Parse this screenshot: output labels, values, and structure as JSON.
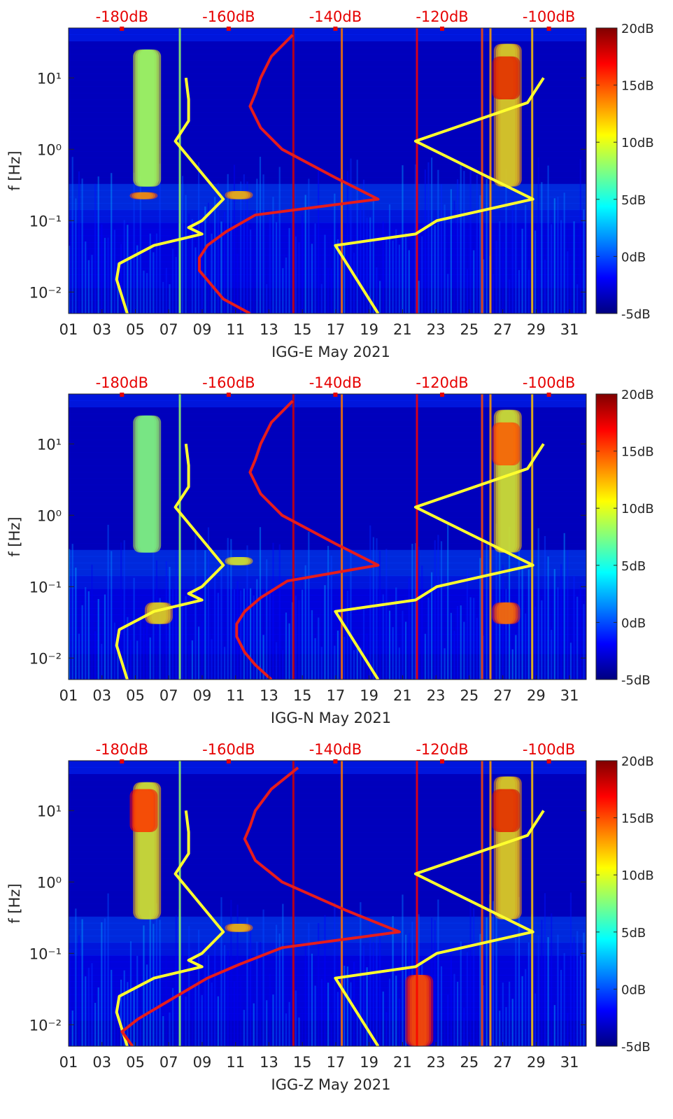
{
  "colors": {
    "background_low": "#00008c",
    "noise_line_yellow": "#ffff2e",
    "psd_line_red": "#e61c1c",
    "top_axis_text": "#e60000",
    "axis_text": "#262626"
  },
  "chart_data": [
    {
      "type": "heatmap",
      "title": "",
      "xlabel": "IGG-E May 2021",
      "ylabel": "f [Hz]",
      "x_range_days": [
        1,
        32
      ],
      "x_ticks": [
        1,
        3,
        5,
        7,
        9,
        11,
        13,
        15,
        17,
        19,
        21,
        23,
        25,
        27,
        29,
        31
      ],
      "x_tick_labels": [
        "01",
        "03",
        "05",
        "07",
        "09",
        "11",
        "13",
        "15",
        "17",
        "19",
        "21",
        "23",
        "25",
        "27",
        "29",
        "31"
      ],
      "y_scale": "log",
      "y_range_hz": [
        0.005,
        50
      ],
      "y_ticks": [
        0.01,
        0.1,
        1,
        10
      ],
      "y_tick_labels": [
        "10^-2",
        "10^-1",
        "10^0",
        "10^1"
      ],
      "top_axis_labels": [
        "-180dB",
        "-160dB",
        "-140dB",
        "-120dB",
        "-100dB"
      ],
      "top_axis_values_db": [
        -180,
        -160,
        -140,
        -120,
        -100
      ],
      "top_axis_range_db": [
        -190,
        -93
      ],
      "colorbar": {
        "range_db": [
          -5,
          20
        ],
        "ticks_db": [
          -5,
          0,
          5,
          10,
          15,
          20
        ],
        "tick_labels": [
          "-5dB",
          "0dB",
          "5dB",
          "10dB",
          "15dB",
          "20dB"
        ]
      },
      "events": [
        {
          "day": 5.7,
          "fmin": 0.3,
          "fmax": 25,
          "level": 10
        },
        {
          "day": 5.5,
          "fmin": 0.2,
          "fmax": 0.25,
          "level": 15
        },
        {
          "day": 11.2,
          "fmin": 0.2,
          "fmax": 0.26,
          "level": 14
        },
        {
          "day": 27.3,
          "fmin": 0.3,
          "fmax": 30,
          "level": 13
        },
        {
          "day": 27.2,
          "fmin": 5,
          "fmax": 20,
          "level": 18
        }
      ],
      "series": [
        {
          "name": "noise_model_low",
          "freq_hz": [
            0.005,
            0.015,
            0.025,
            0.045,
            0.065,
            0.08,
            0.1,
            0.2,
            1.3,
            2.5,
            5,
            10
          ],
          "db": [
            -179,
            -181,
            -180.5,
            -174,
            -165,
            -167.5,
            -165,
            -161,
            -170,
            -167.5,
            -167.5,
            -168
          ]
        },
        {
          "name": "noise_model_high",
          "freq_hz": [
            0.005,
            0.045,
            0.065,
            0.1,
            0.2,
            1.3,
            4.5,
            10
          ],
          "db": [
            -132,
            -140,
            -125,
            -121,
            -103,
            -125,
            -104,
            -101
          ]
        },
        {
          "name": "station_psd",
          "freq_hz": [
            0.005,
            0.008,
            0.012,
            0.02,
            0.03,
            0.045,
            0.07,
            0.12,
            0.2,
            0.4,
            1,
            2,
            4,
            6,
            10,
            20,
            40
          ],
          "db": [
            -156,
            -161,
            -163,
            -165.5,
            -165.5,
            -164,
            -160.5,
            -155,
            -132,
            -140,
            -150,
            -154,
            -156,
            -155,
            -154,
            -152,
            -148
          ]
        }
      ]
    },
    {
      "type": "heatmap",
      "title": "",
      "xlabel": "IGG-N May 2021",
      "ylabel": "f [Hz]",
      "x_range_days": [
        1,
        32
      ],
      "x_ticks": [
        1,
        3,
        5,
        7,
        9,
        11,
        13,
        15,
        17,
        19,
        21,
        23,
        25,
        27,
        29,
        31
      ],
      "x_tick_labels": [
        "01",
        "03",
        "05",
        "07",
        "09",
        "11",
        "13",
        "15",
        "17",
        "19",
        "21",
        "23",
        "25",
        "27",
        "29",
        "31"
      ],
      "y_scale": "log",
      "y_range_hz": [
        0.005,
        50
      ],
      "y_ticks": [
        0.01,
        0.1,
        1,
        10
      ],
      "y_tick_labels": [
        "10^-2",
        "10^-1",
        "10^0",
        "10^1"
      ],
      "top_axis_labels": [
        "-180dB",
        "-160dB",
        "-140dB",
        "-120dB",
        "-100dB"
      ],
      "top_axis_values_db": [
        -180,
        -160,
        -140,
        -120,
        -100
      ],
      "top_axis_range_db": [
        -190,
        -93
      ],
      "colorbar": {
        "range_db": [
          -5,
          20
        ],
        "ticks_db": [
          -5,
          0,
          5,
          10,
          15,
          20
        ],
        "tick_labels": [
          "-5dB",
          "0dB",
          "5dB",
          "10dB",
          "15dB",
          "20dB"
        ]
      },
      "events": [
        {
          "day": 6.4,
          "fmin": 0.03,
          "fmax": 0.06,
          "level": 13
        },
        {
          "day": 5.7,
          "fmin": 0.3,
          "fmax": 25,
          "level": 9
        },
        {
          "day": 11.2,
          "fmin": 0.2,
          "fmax": 0.26,
          "level": 12
        },
        {
          "day": 27.3,
          "fmin": 0.3,
          "fmax": 30,
          "level": 12
        },
        {
          "day": 27.2,
          "fmin": 0.03,
          "fmax": 0.06,
          "level": 16
        },
        {
          "day": 27.2,
          "fmin": 5,
          "fmax": 20,
          "level": 16
        }
      ],
      "series": [
        {
          "name": "noise_model_low",
          "freq_hz": [
            0.005,
            0.015,
            0.025,
            0.045,
            0.065,
            0.08,
            0.1,
            0.2,
            1.3,
            2.5,
            5,
            10
          ],
          "db": [
            -179,
            -181,
            -180.5,
            -174,
            -165,
            -167.5,
            -165,
            -161,
            -170,
            -167.5,
            -167.5,
            -168
          ]
        },
        {
          "name": "noise_model_high",
          "freq_hz": [
            0.005,
            0.045,
            0.065,
            0.1,
            0.2,
            1.3,
            4.5,
            10
          ],
          "db": [
            -132,
            -140,
            -125,
            -121,
            -103,
            -125,
            -104,
            -101
          ]
        },
        {
          "name": "station_psd",
          "freq_hz": [
            0.005,
            0.008,
            0.012,
            0.02,
            0.03,
            0.045,
            0.07,
            0.12,
            0.2,
            0.4,
            1,
            2,
            4,
            6,
            10,
            20,
            40
          ],
          "db": [
            -152,
            -155,
            -157,
            -158.5,
            -158.5,
            -157,
            -154,
            -149,
            -132,
            -140,
            -150,
            -154,
            -156,
            -155,
            -154,
            -152,
            -148
          ]
        }
      ]
    },
    {
      "type": "heatmap",
      "title": "",
      "xlabel": "IGG-Z May 2021",
      "ylabel": "f [Hz]",
      "x_range_days": [
        1,
        32
      ],
      "x_ticks": [
        1,
        3,
        5,
        7,
        9,
        11,
        13,
        15,
        17,
        19,
        21,
        23,
        25,
        27,
        29,
        31
      ],
      "x_tick_labels": [
        "01",
        "03",
        "05",
        "07",
        "09",
        "11",
        "13",
        "15",
        "17",
        "19",
        "21",
        "23",
        "25",
        "27",
        "29",
        "31"
      ],
      "y_scale": "log",
      "y_range_hz": [
        0.005,
        50
      ],
      "y_ticks": [
        0.01,
        0.1,
        1,
        10
      ],
      "y_tick_labels": [
        "10^-2",
        "10^-1",
        "10^0",
        "10^1"
      ],
      "top_axis_labels": [
        "-180dB",
        "-160dB",
        "-140dB",
        "-120dB",
        "-100dB"
      ],
      "top_axis_values_db": [
        -180,
        -160,
        -140,
        -120,
        -100
      ],
      "top_axis_range_db": [
        -190,
        -93
      ],
      "colorbar": {
        "range_db": [
          -5,
          20
        ],
        "ticks_db": [
          -5,
          0,
          5,
          10,
          15,
          20
        ],
        "tick_labels": [
          "-5dB",
          "0dB",
          "5dB",
          "10dB",
          "15dB",
          "20dB"
        ]
      },
      "events": [
        {
          "day": 5.7,
          "fmin": 0.3,
          "fmax": 25,
          "level": 12
        },
        {
          "day": 5.5,
          "fmin": 5,
          "fmax": 20,
          "level": 17
        },
        {
          "day": 11.2,
          "fmin": 0.2,
          "fmax": 0.26,
          "level": 14
        },
        {
          "day": 27.3,
          "fmin": 0.3,
          "fmax": 30,
          "level": 13
        },
        {
          "day": 27.2,
          "fmin": 5,
          "fmax": 20,
          "level": 18
        },
        {
          "day": 22.0,
          "fmin": 0.005,
          "fmax": 0.05,
          "level": 17
        }
      ],
      "series": [
        {
          "name": "noise_model_low",
          "freq_hz": [
            0.005,
            0.015,
            0.025,
            0.045,
            0.065,
            0.08,
            0.1,
            0.2,
            1.3,
            2.5,
            5,
            10
          ],
          "db": [
            -179,
            -181,
            -180.5,
            -174,
            -165,
            -167.5,
            -165,
            -161,
            -170,
            -167.5,
            -167.5,
            -168
          ]
        },
        {
          "name": "noise_model_high",
          "freq_hz": [
            0.005,
            0.045,
            0.065,
            0.1,
            0.2,
            1.3,
            4.5,
            10
          ],
          "db": [
            -132,
            -140,
            -125,
            -121,
            -103,
            -125,
            -104,
            -101
          ]
        },
        {
          "name": "station_psd",
          "freq_hz": [
            0.005,
            0.008,
            0.012,
            0.02,
            0.03,
            0.045,
            0.07,
            0.12,
            0.2,
            0.4,
            1,
            2,
            4,
            6,
            10,
            20,
            40
          ],
          "db": [
            -178,
            -180,
            -177,
            -172,
            -168,
            -164,
            -158,
            -150,
            -128,
            -138,
            -150,
            -155,
            -157,
            -156,
            -155,
            -152,
            -147
          ]
        }
      ]
    }
  ]
}
